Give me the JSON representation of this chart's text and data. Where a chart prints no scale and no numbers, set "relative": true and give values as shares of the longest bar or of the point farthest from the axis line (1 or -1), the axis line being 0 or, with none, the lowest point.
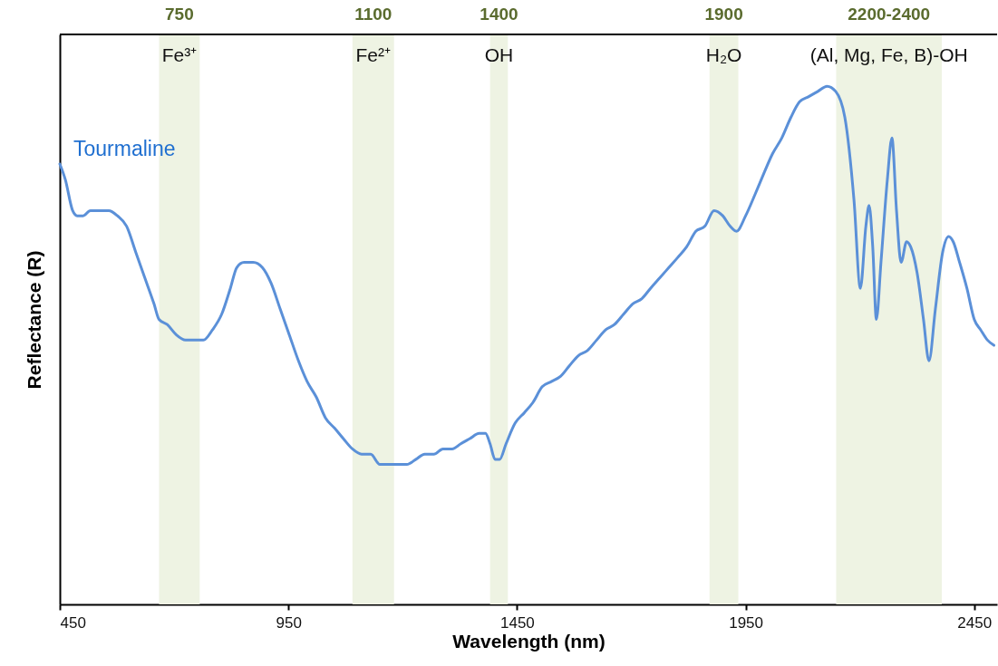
{
  "chart_data": {
    "type": "line",
    "xlabel": "Wavelength (nm)",
    "ylabel": "Reflectance (R)",
    "relative": true,
    "xlim": [
      450,
      2500
    ],
    "xticks": [
      450,
      950,
      1450,
      1950,
      2450
    ],
    "series": [
      {
        "name": "Tourmaline",
        "color": "#5b90d8",
        "x": [
          450,
          462,
          478,
          488,
          501,
          517,
          537,
          557,
          576,
          596,
          616,
          636,
          656,
          667,
          685,
          705,
          725,
          744,
          764,
          784,
          804,
          823,
          837,
          853,
          873,
          893,
          912,
          932,
          952,
          972,
          991,
          1011,
          1031,
          1051,
          1070,
          1090,
          1110,
          1130,
          1150,
          1169,
          1189,
          1209,
          1229,
          1248,
          1268,
          1288,
          1308,
          1327,
          1347,
          1367,
          1381,
          1391,
          1402,
          1412,
          1426,
          1446,
          1466,
          1485,
          1505,
          1525,
          1545,
          1564,
          1584,
          1604,
          1624,
          1644,
          1663,
          1683,
          1703,
          1723,
          1742,
          1762,
          1782,
          1802,
          1821,
          1841,
          1861,
          1881,
          1900,
          1916,
          1930,
          1950,
          1970,
          1989,
          2009,
          2029,
          2049,
          2068,
          2088,
          2108,
          2128,
          2147,
          2167,
          2187,
          2201,
          2213,
          2220,
          2228,
          2236,
          2246,
          2260,
          2270,
          2280,
          2290,
          2302,
          2311,
          2325,
          2339,
          2351,
          2365,
          2381,
          2394,
          2404,
          2418,
          2434,
          2450,
          2464,
          2479,
          2493
        ],
        "values": [
          0.85,
          0.82,
          0.76,
          0.75,
          0.75,
          0.76,
          0.76,
          0.76,
          0.75,
          0.73,
          0.68,
          0.63,
          0.58,
          0.55,
          0.54,
          0.52,
          0.51,
          0.51,
          0.51,
          0.53,
          0.56,
          0.61,
          0.65,
          0.66,
          0.66,
          0.65,
          0.62,
          0.57,
          0.52,
          0.47,
          0.43,
          0.4,
          0.36,
          0.34,
          0.32,
          0.3,
          0.29,
          0.29,
          0.27,
          0.27,
          0.27,
          0.27,
          0.28,
          0.29,
          0.29,
          0.3,
          0.3,
          0.31,
          0.32,
          0.33,
          0.33,
          0.31,
          0.28,
          0.28,
          0.31,
          0.35,
          0.37,
          0.39,
          0.42,
          0.43,
          0.44,
          0.46,
          0.48,
          0.49,
          0.51,
          0.53,
          0.54,
          0.56,
          0.58,
          0.59,
          0.61,
          0.63,
          0.65,
          0.67,
          0.69,
          0.72,
          0.73,
          0.76,
          0.75,
          0.73,
          0.72,
          0.75,
          0.79,
          0.83,
          0.87,
          0.9,
          0.94,
          0.97,
          0.98,
          0.99,
          1.0,
          0.99,
          0.94,
          0.78,
          0.61,
          0.73,
          0.77,
          0.69,
          0.55,
          0.66,
          0.82,
          0.9,
          0.76,
          0.66,
          0.7,
          0.69,
          0.64,
          0.55,
          0.47,
          0.57,
          0.68,
          0.71,
          0.7,
          0.66,
          0.61,
          0.55,
          0.53,
          0.51,
          0.5
        ]
      }
    ],
    "bands": [
      {
        "axis": "x",
        "from": 667,
        "to": 756,
        "label": "750",
        "color": "#eef3e3"
      },
      {
        "axis": "x",
        "from": 1090,
        "to": 1181,
        "label": "1100",
        "color": "#eef3e3"
      },
      {
        "axis": "x",
        "from": 1391,
        "to": 1430,
        "label": "1400",
        "color": "#eef3e3"
      },
      {
        "axis": "x",
        "from": 1871,
        "to": 1934,
        "label": "1900",
        "color": "#eef3e3"
      },
      {
        "axis": "x",
        "from": 2148,
        "to": 2379,
        "label": "2200-2400",
        "color": "#eef3e3"
      }
    ],
    "annotations": [
      "Fe³⁺",
      "Fe²⁺",
      "OH",
      "H₂O",
      "(Al, Mg, Fe, B)-OH"
    ],
    "grid": false
  }
}
